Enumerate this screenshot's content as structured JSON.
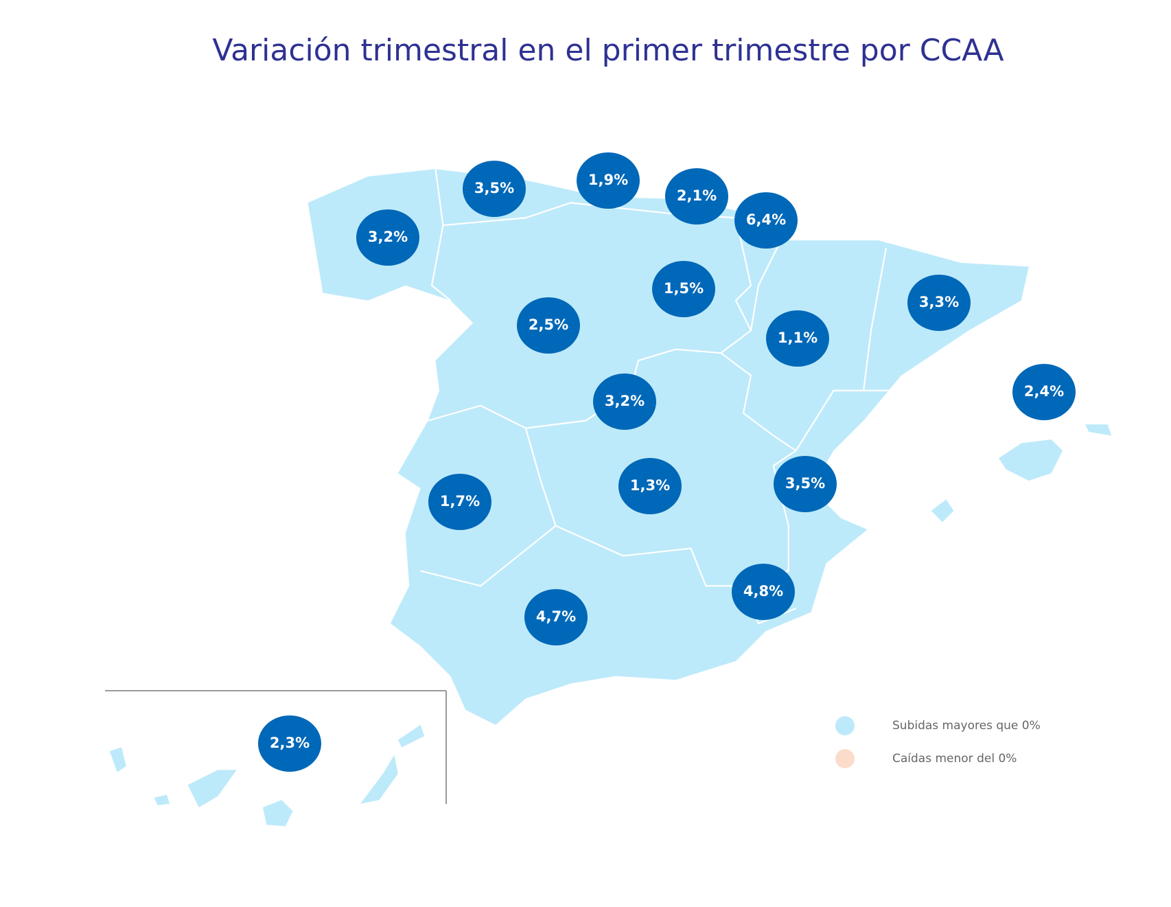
{
  "title": "Variación trimestral en el primer trimestre por CCAA",
  "bubble_color": "#0068b8",
  "regions": [
    {
      "label": "3,2%"
    },
    {
      "label": "3,5%"
    },
    {
      "label": "1,9%"
    },
    {
      "label": "2,1%"
    },
    {
      "label": "6,4%"
    },
    {
      "label": "1,5%"
    },
    {
      "label": "2,5%"
    },
    {
      "label": "1,1%"
    },
    {
      "label": "3,3%"
    },
    {
      "label": "2,4%"
    },
    {
      "label": "3,2%"
    },
    {
      "label": "1,7%"
    },
    {
      "label": "1,3%"
    },
    {
      "label": "3,5%"
    },
    {
      "label": "4,8%"
    },
    {
      "label": "4,7%"
    },
    {
      "label": "2,3%"
    }
  ],
  "legend": [
    {
      "label": "Subidas mayores que 0%",
      "color": "#bdeafa"
    },
    {
      "label": "Caídas menor del 0%",
      "color": "#fbdccb"
    }
  ]
}
